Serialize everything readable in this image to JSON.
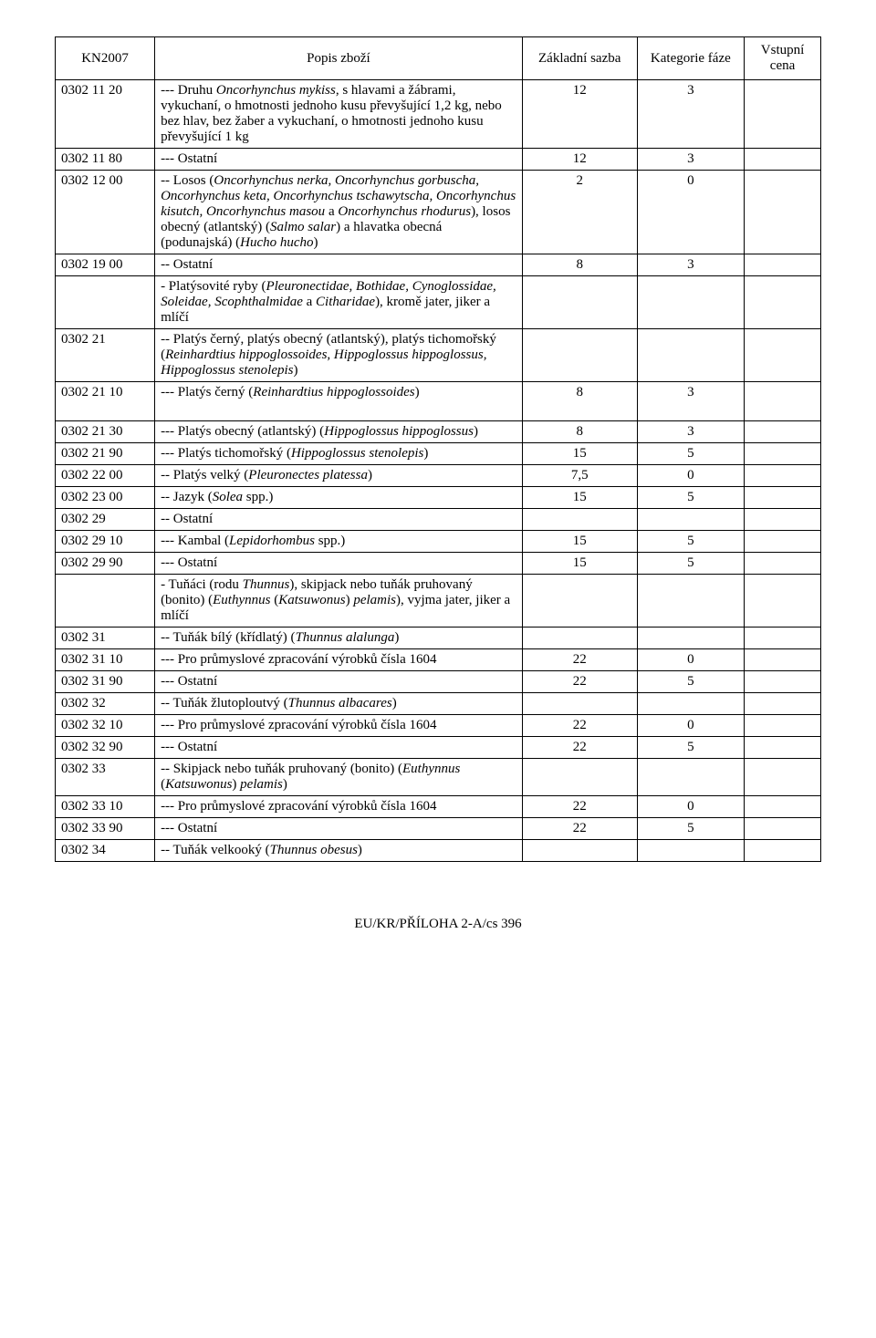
{
  "headers": {
    "col1": "KN2007",
    "col2": "Popis zboží",
    "col3": "Základní sazba",
    "col4": "Kategorie fáze",
    "col5": "Vstupní cena"
  },
  "rows": [
    {
      "code": "0302 11 20",
      "desc": "--- Druhu <em>Oncorhynchus mykiss</em>, s hlavami a žábrami, vykuchaní, o hmotnosti jednoho kusu převyšující 1,2 kg, nebo bez hlav, bez žaber a vykuchaní, o hmotnosti jednoho kusu převyšující 1 kg",
      "rate": "12",
      "cat": "3",
      "price": ""
    },
    {
      "code": "0302 11 80",
      "desc": "--- Ostatní",
      "rate": "12",
      "cat": "3",
      "price": ""
    },
    {
      "code": "0302 12 00",
      "desc": "-- Losos (<em>Oncorhynchus nerka, Oncorhynchus gorbuscha, Oncorhynchus keta, Oncorhynchus tschawytscha, Oncorhynchus kisutch, Oncorhynchus masou</em> a <em>Oncorhynchus rhodurus</em>), losos obecný (atlantský) (<em>Salmo salar</em>) a hlavatka obecná (podunajská) (<em>Hucho hucho</em>)",
      "rate": "2",
      "cat": "0",
      "price": ""
    },
    {
      "code": "0302 19 00",
      "desc": "-- Ostatní",
      "rate": "8",
      "cat": "3",
      "price": ""
    },
    {
      "code": "",
      "desc": "- Platýsovité ryby (<em>Pleuronectidae, Bothidae, Cynoglossidae, Soleidae, Scophthalmidae</em> a <em>Citharidae</em>), kromě jater, jiker a mlíčí",
      "rate": "",
      "cat": "",
      "price": ""
    },
    {
      "code": "0302 21",
      "desc": "-- Platýs černý, platýs obecný (atlantský), platýs tichomořský (<em>Reinhardtius hippoglossoides, Hippoglossus hippoglossus, Hippoglossus stenolepis</em>)",
      "rate": "",
      "cat": "",
      "price": ""
    },
    {
      "code": "0302 21 10",
      "desc": "--- Platýs černý (<em>Reinhardtius hippoglossoides</em>)",
      "rate": "8",
      "cat": "3",
      "price": "",
      "tall": true
    },
    {
      "code": "0302 21 30",
      "desc": "--- Platýs obecný (atlantský) (<em>Hippoglossus hippoglossus</em>)",
      "rate": "8",
      "cat": "3",
      "price": ""
    },
    {
      "code": "0302 21 90",
      "desc": "--- Platýs tichomořský (<em>Hippoglossus stenolepis</em>)",
      "rate": "15",
      "cat": "5",
      "price": ""
    },
    {
      "code": "0302 22 00",
      "desc": "-- Platýs velký (<em>Pleuronectes platessa</em>)",
      "rate": "7,5",
      "cat": "0",
      "price": ""
    },
    {
      "code": "0302 23 00",
      "desc": "-- Jazyk (<em>Solea</em> spp.)",
      "rate": "15",
      "cat": "5",
      "price": ""
    },
    {
      "code": "0302 29",
      "desc": "-- Ostatní",
      "rate": "",
      "cat": "",
      "price": ""
    },
    {
      "code": "0302 29 10",
      "desc": "--- Kambal (<em>Lepidorhombus</em> spp.)",
      "rate": "15",
      "cat": "5",
      "price": ""
    },
    {
      "code": "0302 29 90",
      "desc": "--- Ostatní",
      "rate": "15",
      "cat": "5",
      "price": ""
    },
    {
      "code": "",
      "desc": "- Tuňáci (rodu <em>Thunnus</em>), skipjack nebo tuňák pruhovaný (bonito) (<em>Euthynnus</em> (<em>Katsuwonus</em>) <em>pelamis</em>), vyjma jater, jiker a mlíčí",
      "rate": "",
      "cat": "",
      "price": ""
    },
    {
      "code": "0302 31",
      "desc": "-- Tuňák bílý (křídlatý) (<em>Thunnus alalunga</em>)",
      "rate": "",
      "cat": "",
      "price": ""
    },
    {
      "code": "0302 31 10",
      "desc": "--- Pro průmyslové zpracování výrobků čísla 1604",
      "rate": "22",
      "cat": "0",
      "price": ""
    },
    {
      "code": "0302 31 90",
      "desc": "--- Ostatní",
      "rate": "22",
      "cat": "5",
      "price": ""
    },
    {
      "code": "0302 32",
      "desc": "-- Tuňák žlutoploutvý (<em>Thunnus albacares</em>)",
      "rate": "",
      "cat": "",
      "price": ""
    },
    {
      "code": "0302 32 10",
      "desc": "--- Pro průmyslové zpracování výrobků čísla 1604",
      "rate": "22",
      "cat": "0",
      "price": ""
    },
    {
      "code": "0302 32 90",
      "desc": "--- Ostatní",
      "rate": "22",
      "cat": "5",
      "price": ""
    },
    {
      "code": "0302 33",
      "desc": "-- Skipjack nebo tuňák pruhovaný (bonito) (<em>Euthynnus</em> (<em>Katsuwonus</em>) <em>pelamis</em>)",
      "rate": "",
      "cat": "",
      "price": ""
    },
    {
      "code": "0302 33 10",
      "desc": "--- Pro průmyslové zpracování výrobků čísla 1604",
      "rate": "22",
      "cat": "0",
      "price": ""
    },
    {
      "code": "0302 33 90",
      "desc": "--- Ostatní",
      "rate": "22",
      "cat": "5",
      "price": ""
    },
    {
      "code": "0302 34",
      "desc": "-- Tuňák velkooký (<em>Thunnus obesus</em>)",
      "rate": "",
      "cat": "",
      "price": ""
    }
  ],
  "footer": "EU/KR/PŘÍLOHA 2-A/cs 396"
}
